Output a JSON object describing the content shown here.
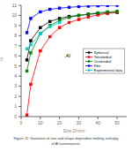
{
  "chart_data": {
    "type": "line",
    "xlabel": "Size D(nm)",
    "ylabel": "H",
    "annotations": [
      "Al"
    ],
    "caption": [
      "Figure 11: Variations of size and shape dependent melting enthalpy",
      "of Al nanomaterial."
    ],
    "xlim": [
      0,
      55
    ],
    "xticks": [
      0,
      10,
      20,
      30,
      40,
      50
    ],
    "ylim": [
      0,
      11
    ],
    "yticks": [
      0,
      1,
      2,
      3,
      4,
      5,
      6,
      7,
      8,
      9,
      10,
      11
    ],
    "grid": false,
    "legend": "right",
    "series": [
      {
        "name": "Spherical",
        "color": "#000000",
        "marker": "square",
        "line_style": "solid",
        "x": [
          3,
          5,
          10,
          15,
          20,
          25,
          30,
          35,
          40,
          45,
          50
        ],
        "values": [
          5.6,
          7.5,
          8.8,
          9.4,
          9.7,
          9.9,
          10.0,
          10.1,
          10.2,
          10.25,
          10.3
        ]
      },
      {
        "name": "Tetrahedral",
        "color": "#ff0000",
        "marker": "square",
        "line_style": "solid",
        "x": [
          3,
          5,
          10,
          15,
          20,
          25,
          30,
          35,
          40,
          45,
          50
        ],
        "values": [
          0.15,
          3.2,
          6.5,
          7.9,
          8.8,
          9.3,
          9.6,
          9.85,
          10.05,
          10.2,
          10.35
        ]
      },
      {
        "name": "Octahedral",
        "color": "#008000",
        "marker": "square",
        "line_style": "solid",
        "x": [
          3,
          5,
          10,
          15,
          20,
          25,
          30,
          35,
          40,
          45,
          50
        ],
        "values": [
          4.5,
          6.3,
          8.2,
          9.0,
          9.5,
          9.8,
          10.0,
          10.15,
          10.25,
          10.35,
          10.4
        ]
      },
      {
        "name": "Film",
        "color": "#0000ff",
        "marker": "square",
        "line_style": "solid",
        "x": [
          3,
          5,
          10,
          15,
          20,
          25,
          30,
          35,
          40,
          45,
          50
        ],
        "values": [
          8.3,
          9.7,
          10.35,
          10.6,
          10.72,
          10.8,
          10.87,
          10.92,
          10.95,
          10.98,
          11.0
        ]
      },
      {
        "name": "Experimental data",
        "color": "#00cccc",
        "marker": "square",
        "line_style": "solid",
        "x": [
          3,
          5,
          10,
          15,
          20
        ],
        "values": [
          6.7,
          7.1,
          8.2,
          8.9,
          9.3
        ]
      }
    ]
  }
}
